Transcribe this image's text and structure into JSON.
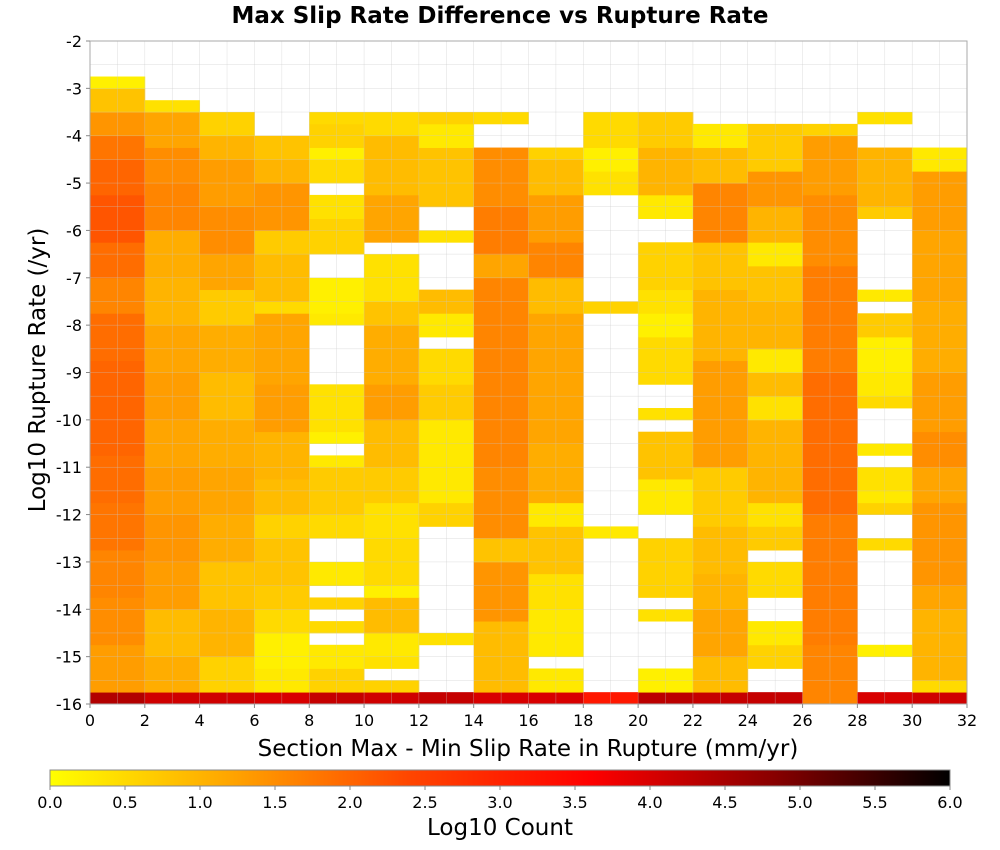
{
  "chart_data": {
    "type": "heatmap",
    "title": "Max Slip Rate Difference vs Rupture Rate",
    "xlabel": "Section Max - Min Slip Rate in Rupture (mm/yr)",
    "ylabel": "Log10 Rupture Rate (/yr)",
    "colorbar_label": "Log10 Count",
    "xlim": [
      0,
      32
    ],
    "ylim": [
      -16,
      -2
    ],
    "x_ticks": [
      "0",
      "2",
      "4",
      "6",
      "8",
      "10",
      "12",
      "14",
      "16",
      "18",
      "20",
      "22",
      "24",
      "26",
      "28",
      "30",
      "32"
    ],
    "y_ticks": [
      "-2",
      "-3",
      "-4",
      "-5",
      "-6",
      "-7",
      "-8",
      "-9",
      "-10",
      "-11",
      "-12",
      "-13",
      "-14",
      "-15",
      "-16"
    ],
    "colorbar_ticks": [
      "0.0",
      "0.5",
      "1.0",
      "1.5",
      "2.0",
      "2.5",
      "3.0",
      "3.5",
      "4.0",
      "4.5",
      "5.0",
      "5.5",
      "6.0"
    ],
    "color_range": [
      0,
      6
    ],
    "colormap": [
      "#ffff00",
      "#ffa500",
      "#ff4500",
      "#ff0000",
      "#8b0000",
      "#000000"
    ],
    "grid": true,
    "bin_width_x": 2,
    "bin_height_y": 0.25,
    "note_cells": "columns: x-bin start; each column lists [y_bottom, y_top, log10 count] ranges",
    "columns": [
      {
        "x0": 0,
        "cells": [
          [
            -16,
            -15.75,
            4.4
          ],
          [
            -15.75,
            -14.75,
            1.3
          ],
          [
            -14.75,
            -13.75,
            1.5
          ],
          [
            -13.75,
            -12.75,
            1.6
          ],
          [
            -12.75,
            -11.75,
            1.8
          ],
          [
            -11.75,
            -10.75,
            1.9
          ],
          [
            -10.75,
            -9.75,
            2.0
          ],
          [
            -9.75,
            -8.75,
            2.0
          ],
          [
            -8.75,
            -7.75,
            1.9
          ],
          [
            -7.75,
            -7.0,
            1.6
          ],
          [
            -7.0,
            -6.25,
            1.9
          ],
          [
            -6.25,
            -5.25,
            2.2
          ],
          [
            -5.25,
            -4.5,
            2.0
          ],
          [
            -4.5,
            -4.0,
            1.8
          ],
          [
            -4.0,
            -3.5,
            1.4
          ],
          [
            -3.5,
            -3.0,
            0.8
          ],
          [
            -3.0,
            -2.75,
            0.2
          ]
        ]
      },
      {
        "x0": 2,
        "cells": [
          [
            -16,
            -15.75,
            4.1
          ],
          [
            -15.75,
            -15.0,
            1.1
          ],
          [
            -15.0,
            -14.0,
            0.9
          ],
          [
            -14.0,
            -13.0,
            1.3
          ],
          [
            -13.0,
            -12.0,
            1.4
          ],
          [
            -12.0,
            -11.0,
            1.3
          ],
          [
            -11.0,
            -10.0,
            1.2
          ],
          [
            -10.0,
            -9.0,
            1.3
          ],
          [
            -9.0,
            -8.0,
            1.2
          ],
          [
            -8.0,
            -7.0,
            1.0
          ],
          [
            -7.0,
            -6.0,
            1.1
          ],
          [
            -6.0,
            -5.0,
            1.6
          ],
          [
            -5.0,
            -4.25,
            1.5
          ],
          [
            -4.25,
            -3.5,
            1.2
          ],
          [
            -3.5,
            -3.25,
            0.4
          ]
        ]
      },
      {
        "x0": 4,
        "cells": [
          [
            -16,
            -15.75,
            4.1
          ],
          [
            -15.75,
            -15.0,
            0.6
          ],
          [
            -15.0,
            -14.0,
            1.0
          ],
          [
            -14.0,
            -13.0,
            0.8
          ],
          [
            -13.0,
            -12.0,
            1.1
          ],
          [
            -12.0,
            -11.0,
            1.2
          ],
          [
            -11.0,
            -10.0,
            1.1
          ],
          [
            -10.0,
            -9.0,
            0.9
          ],
          [
            -9.0,
            -8.0,
            1.1
          ],
          [
            -8.0,
            -7.25,
            0.7
          ],
          [
            -7.25,
            -6.5,
            1.2
          ],
          [
            -6.5,
            -5.5,
            1.5
          ],
          [
            -5.5,
            -4.5,
            1.3
          ],
          [
            -4.5,
            -4.0,
            1.0
          ],
          [
            -4.0,
            -3.5,
            0.6
          ]
        ]
      },
      {
        "x0": 6,
        "cells": [
          [
            -16,
            -15.75,
            4.0
          ],
          [
            -15.75,
            -15.25,
            0.3
          ],
          [
            -15.25,
            -14.5,
            0.2
          ],
          [
            -14.5,
            -14.0,
            0.5
          ],
          [
            -14.0,
            -13.5,
            0.7
          ],
          [
            -13.5,
            -12.5,
            0.8
          ],
          [
            -12.5,
            -12.0,
            0.6
          ],
          [
            -12.0,
            -11.25,
            0.9
          ],
          [
            -11.25,
            -10.25,
            1.0
          ],
          [
            -10.25,
            -9.25,
            1.3
          ],
          [
            -9.25,
            -7.75,
            1.2
          ],
          [
            -7.75,
            -7.5,
            0.5
          ],
          [
            -7.5,
            -6.5,
            0.9
          ],
          [
            -6.5,
            -6.0,
            0.7
          ],
          [
            -6.0,
            -5.0,
            1.4
          ],
          [
            -5.0,
            -4.5,
            1.0
          ],
          [
            -4.5,
            -4.0,
            0.8
          ]
        ]
      },
      {
        "x0": 8,
        "cells": [
          [
            -16,
            -15.75,
            4.2
          ],
          [
            -15.75,
            -15.25,
            0.6
          ],
          [
            -15.25,
            -14.75,
            0.3
          ],
          [
            -14.5,
            -14.25,
            0.5
          ],
          [
            -14.0,
            -13.75,
            0.6
          ],
          [
            -13.5,
            -13.0,
            0.3
          ],
          [
            -12.5,
            -12.0,
            0.5
          ],
          [
            -12.0,
            -11.0,
            0.7
          ],
          [
            -11.0,
            -10.75,
            0.3
          ],
          [
            -10.5,
            -10.25,
            0.2
          ],
          [
            -10.25,
            -9.25,
            0.4
          ],
          [
            -8.0,
            -7.75,
            0.3
          ],
          [
            -7.75,
            -7.0,
            0.2
          ],
          [
            -6.5,
            -5.75,
            0.6
          ],
          [
            -5.75,
            -5.25,
            0.4
          ],
          [
            -5.0,
            -4.5,
            0.5
          ],
          [
            -4.5,
            -4.25,
            0.2
          ],
          [
            -4.25,
            -3.75,
            0.6
          ],
          [
            -3.75,
            -3.5,
            0.5
          ]
        ]
      },
      {
        "x0": 10,
        "cells": [
          [
            -16,
            -15.75,
            4.1
          ],
          [
            -15.75,
            -15.5,
            0.6
          ],
          [
            -15.25,
            -15.0,
            0.4
          ],
          [
            -15.0,
            -14.5,
            0.3
          ],
          [
            -14.5,
            -13.75,
            0.9
          ],
          [
            -13.75,
            -13.5,
            0.2
          ],
          [
            -13.5,
            -12.5,
            0.5
          ],
          [
            -12.5,
            -11.75,
            0.4
          ],
          [
            -11.75,
            -11.0,
            0.7
          ],
          [
            -11.0,
            -10.0,
            0.9
          ],
          [
            -10.0,
            -9.25,
            1.3
          ],
          [
            -9.25,
            -8.0,
            1.1
          ],
          [
            -8.0,
            -7.5,
            0.8
          ],
          [
            -7.5,
            -6.5,
            0.4
          ],
          [
            -6.25,
            -5.25,
            1.2
          ],
          [
            -5.25,
            -4.0,
            0.9
          ],
          [
            -4.0,
            -3.5,
            0.5
          ]
        ]
      },
      {
        "x0": 12,
        "cells": [
          [
            -16,
            -15.75,
            4.2
          ],
          [
            -14.75,
            -14.5,
            0.4
          ],
          [
            -12.25,
            -11.75,
            0.6
          ],
          [
            -11.75,
            -10.0,
            0.3
          ],
          [
            -10.0,
            -9.25,
            0.7
          ],
          [
            -9.25,
            -8.5,
            0.5
          ],
          [
            -8.25,
            -7.75,
            0.3
          ],
          [
            -7.75,
            -7.25,
            0.9
          ],
          [
            -6.25,
            -6.0,
            0.4
          ],
          [
            -5.5,
            -4.25,
            0.8
          ],
          [
            -4.25,
            -3.75,
            0.3
          ],
          [
            -3.75,
            -3.5,
            0.6
          ]
        ]
      },
      {
        "x0": 14,
        "cells": [
          [
            -16,
            -15.75,
            4.0
          ],
          [
            -15.75,
            -14.25,
            0.9
          ],
          [
            -14.25,
            -13.0,
            1.4
          ],
          [
            -13.0,
            -12.5,
            0.8
          ],
          [
            -12.5,
            -11.0,
            1.5
          ],
          [
            -11.0,
            -7.0,
            1.6
          ],
          [
            -7.0,
            -6.5,
            1.2
          ],
          [
            -6.5,
            -5.5,
            1.7
          ],
          [
            -5.5,
            -4.25,
            1.5
          ],
          [
            -3.75,
            -3.5,
            0.5
          ]
        ]
      },
      {
        "x0": 16,
        "cells": [
          [
            -16,
            -15.75,
            4.0
          ],
          [
            -15.75,
            -15.25,
            0.3
          ],
          [
            -15.0,
            -14.0,
            0.3
          ],
          [
            -14.0,
            -13.25,
            0.4
          ],
          [
            -13.25,
            -12.25,
            0.8
          ],
          [
            -12.25,
            -11.75,
            0.3
          ],
          [
            -11.75,
            -10.5,
            1.1
          ],
          [
            -10.5,
            -7.75,
            1.2
          ],
          [
            -7.75,
            -7.0,
            0.9
          ],
          [
            -7.0,
            -6.25,
            1.6
          ],
          [
            -6.25,
            -5.25,
            1.3
          ],
          [
            -5.25,
            -4.5,
            0.9
          ],
          [
            -4.5,
            -4.25,
            0.6
          ]
        ]
      },
      {
        "x0": 18,
        "cells": [
          [
            -16,
            -15.75,
            3.2
          ],
          [
            -12.5,
            -12.25,
            0.3
          ],
          [
            -7.75,
            -7.5,
            0.6
          ],
          [
            -5.25,
            -4.75,
            0.4
          ],
          [
            -4.75,
            -4.25,
            0.2
          ],
          [
            -4.25,
            -3.5,
            0.5
          ]
        ]
      },
      {
        "x0": 20,
        "cells": [
          [
            -16,
            -15.75,
            4.3
          ],
          [
            -15.75,
            -15.25,
            0.2
          ],
          [
            -14.25,
            -14.0,
            0.4
          ],
          [
            -13.75,
            -12.5,
            0.6
          ],
          [
            -12.0,
            -11.25,
            0.3
          ],
          [
            -11.25,
            -10.25,
            0.8
          ],
          [
            -10.0,
            -9.75,
            0.4
          ],
          [
            -9.25,
            -8.25,
            0.5
          ],
          [
            -8.25,
            -7.75,
            0.2
          ],
          [
            -7.75,
            -7.25,
            0.4
          ],
          [
            -7.25,
            -6.25,
            0.6
          ],
          [
            -5.75,
            -5.25,
            0.3
          ],
          [
            -5.25,
            -4.25,
            1.0
          ],
          [
            -4.25,
            -3.5,
            0.7
          ]
        ]
      },
      {
        "x0": 22,
        "cells": [
          [
            -16,
            -15.75,
            4.2
          ],
          [
            -15.75,
            -15.0,
            0.9
          ],
          [
            -15.0,
            -14.0,
            1.2
          ],
          [
            -14.0,
            -13.25,
            1.0
          ],
          [
            -13.25,
            -12.25,
            0.9
          ],
          [
            -12.25,
            -11.0,
            0.7
          ],
          [
            -11.0,
            -8.75,
            1.3
          ],
          [
            -8.75,
            -7.25,
            1.0
          ],
          [
            -7.25,
            -6.25,
            0.8
          ],
          [
            -6.25,
            -5.0,
            1.6
          ],
          [
            -5.0,
            -4.25,
            0.9
          ],
          [
            -4.25,
            -3.75,
            0.3
          ]
        ]
      },
      {
        "x0": 24,
        "cells": [
          [
            -16,
            -15.75,
            4.2
          ],
          [
            -15.25,
            -14.75,
            0.6
          ],
          [
            -14.75,
            -14.25,
            0.3
          ],
          [
            -13.75,
            -13.0,
            0.5
          ],
          [
            -12.75,
            -12.25,
            0.7
          ],
          [
            -12.25,
            -11.75,
            0.4
          ],
          [
            -11.75,
            -10.0,
            1.0
          ],
          [
            -10.0,
            -9.5,
            0.4
          ],
          [
            -9.5,
            -9.0,
            0.9
          ],
          [
            -9.0,
            -8.5,
            0.3
          ],
          [
            -8.5,
            -7.5,
            1.0
          ],
          [
            -7.5,
            -6.75,
            0.8
          ],
          [
            -6.75,
            -6.25,
            0.3
          ],
          [
            -6.25,
            -5.5,
            1.0
          ],
          [
            -5.5,
            -4.75,
            1.4
          ],
          [
            -4.75,
            -3.75,
            0.7
          ]
        ]
      },
      {
        "x0": 26,
        "cells": [
          [
            -16,
            -14.75,
            1.6
          ],
          [
            -14.75,
            -12.0,
            1.7
          ],
          [
            -12.0,
            -9.0,
            1.9
          ],
          [
            -9.0,
            -6.75,
            1.7
          ],
          [
            -6.75,
            -5.25,
            1.5
          ],
          [
            -5.25,
            -4.0,
            1.3
          ],
          [
            -4.0,
            -3.75,
            0.6
          ]
        ]
      },
      {
        "x0": 28,
        "cells": [
          [
            -16,
            -15.75,
            4.0
          ],
          [
            -15.0,
            -14.75,
            0.2
          ],
          [
            -12.75,
            -12.5,
            0.5
          ],
          [
            -12.0,
            -11.75,
            0.6
          ],
          [
            -11.75,
            -11.5,
            0.3
          ],
          [
            -11.5,
            -11.0,
            0.4
          ],
          [
            -10.75,
            -10.5,
            0.3
          ],
          [
            -9.75,
            -9.5,
            0.5
          ],
          [
            -9.5,
            -9.0,
            0.3
          ],
          [
            -9.0,
            -8.25,
            0.2
          ],
          [
            -8.25,
            -7.75,
            0.7
          ],
          [
            -7.5,
            -7.25,
            0.3
          ],
          [
            -5.75,
            -5.5,
            0.7
          ],
          [
            -5.5,
            -4.25,
            1.0
          ],
          [
            -3.75,
            -3.5,
            0.4
          ]
        ]
      },
      {
        "x0": 30,
        "cells": [
          [
            -16,
            -15.75,
            4.1
          ],
          [
            -15.75,
            -15.5,
            0.5
          ],
          [
            -15.5,
            -14.0,
            1.0
          ],
          [
            -14.0,
            -13.5,
            1.2
          ],
          [
            -13.5,
            -11.75,
            1.4
          ],
          [
            -11.75,
            -11.0,
            1.2
          ],
          [
            -11.0,
            -10.25,
            1.5
          ],
          [
            -10.25,
            -9.0,
            1.3
          ],
          [
            -9.0,
            -7.5,
            1.1
          ],
          [
            -7.5,
            -6.0,
            1.2
          ],
          [
            -6.0,
            -4.75,
            1.3
          ],
          [
            -4.75,
            -4.25,
            0.3
          ]
        ]
      }
    ]
  }
}
